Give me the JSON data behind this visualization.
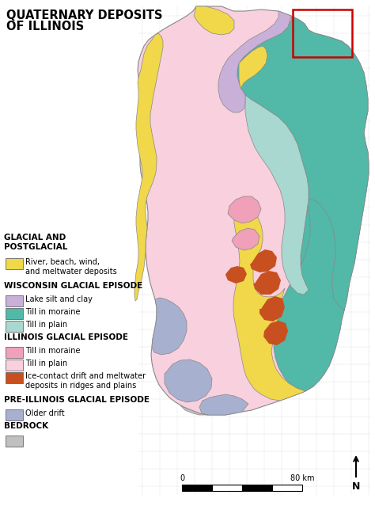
{
  "title_line1": "QUATERNARY DEPOSITS",
  "title_line2": "OF ILLINOIS",
  "title_fontsize": 10.5,
  "bg_color": "#ffffff",
  "col_yellow": "#f0d84a",
  "col_purple": "#c8b0d8",
  "col_teal_dark": "#52b8a8",
  "col_teal_light": "#a8d8d0",
  "col_pink_dark": "#f0a0b8",
  "col_pink_light": "#f8d0de",
  "col_orange": "#c85020",
  "col_blue_grey": "#a8b0d0",
  "col_grey": "#c0c0c0",
  "col_border": "#888888",
  "col_grid": "#cccccc",
  "col_red_box": "#cc0000",
  "legend_items": [
    {
      "section_header": "GLACIAL AND\nPOSTGLACIAL",
      "color": null,
      "label": null
    },
    {
      "section_header": null,
      "color": "#f0d84a",
      "label": "River, beach, wind,\nand meltwater deposits"
    },
    {
      "section_header": "WISCONSIN GLACIAL EPISODE",
      "color": null,
      "label": null
    },
    {
      "section_header": null,
      "color": "#c8b0d8",
      "label": "Lake silt and clay"
    },
    {
      "section_header": null,
      "color": "#52b8a8",
      "label": "Till in moraine"
    },
    {
      "section_header": null,
      "color": "#a8d8d0",
      "label": "Till in plain"
    },
    {
      "section_header": "ILLINOIS GLACIAL EPISODE",
      "color": null,
      "label": null
    },
    {
      "section_header": null,
      "color": "#f0a0b8",
      "label": "Till in moraine"
    },
    {
      "section_header": null,
      "color": "#f8d0de",
      "label": "Till in plain"
    },
    {
      "section_header": null,
      "color": "#c85020",
      "label": "Ice-contact drift and meltwater\ndeposits in ridges and plains"
    },
    {
      "section_header": "PRE-ILLINOIS GLACIAL EPISODE",
      "color": null,
      "label": null
    },
    {
      "section_header": null,
      "color": "#a8b0d0",
      "label": "Older drift"
    },
    {
      "section_header": "BEDROCK",
      "color": null,
      "label": null
    },
    {
      "section_header": null,
      "color": "#c0c0c0",
      "label": ""
    }
  ]
}
